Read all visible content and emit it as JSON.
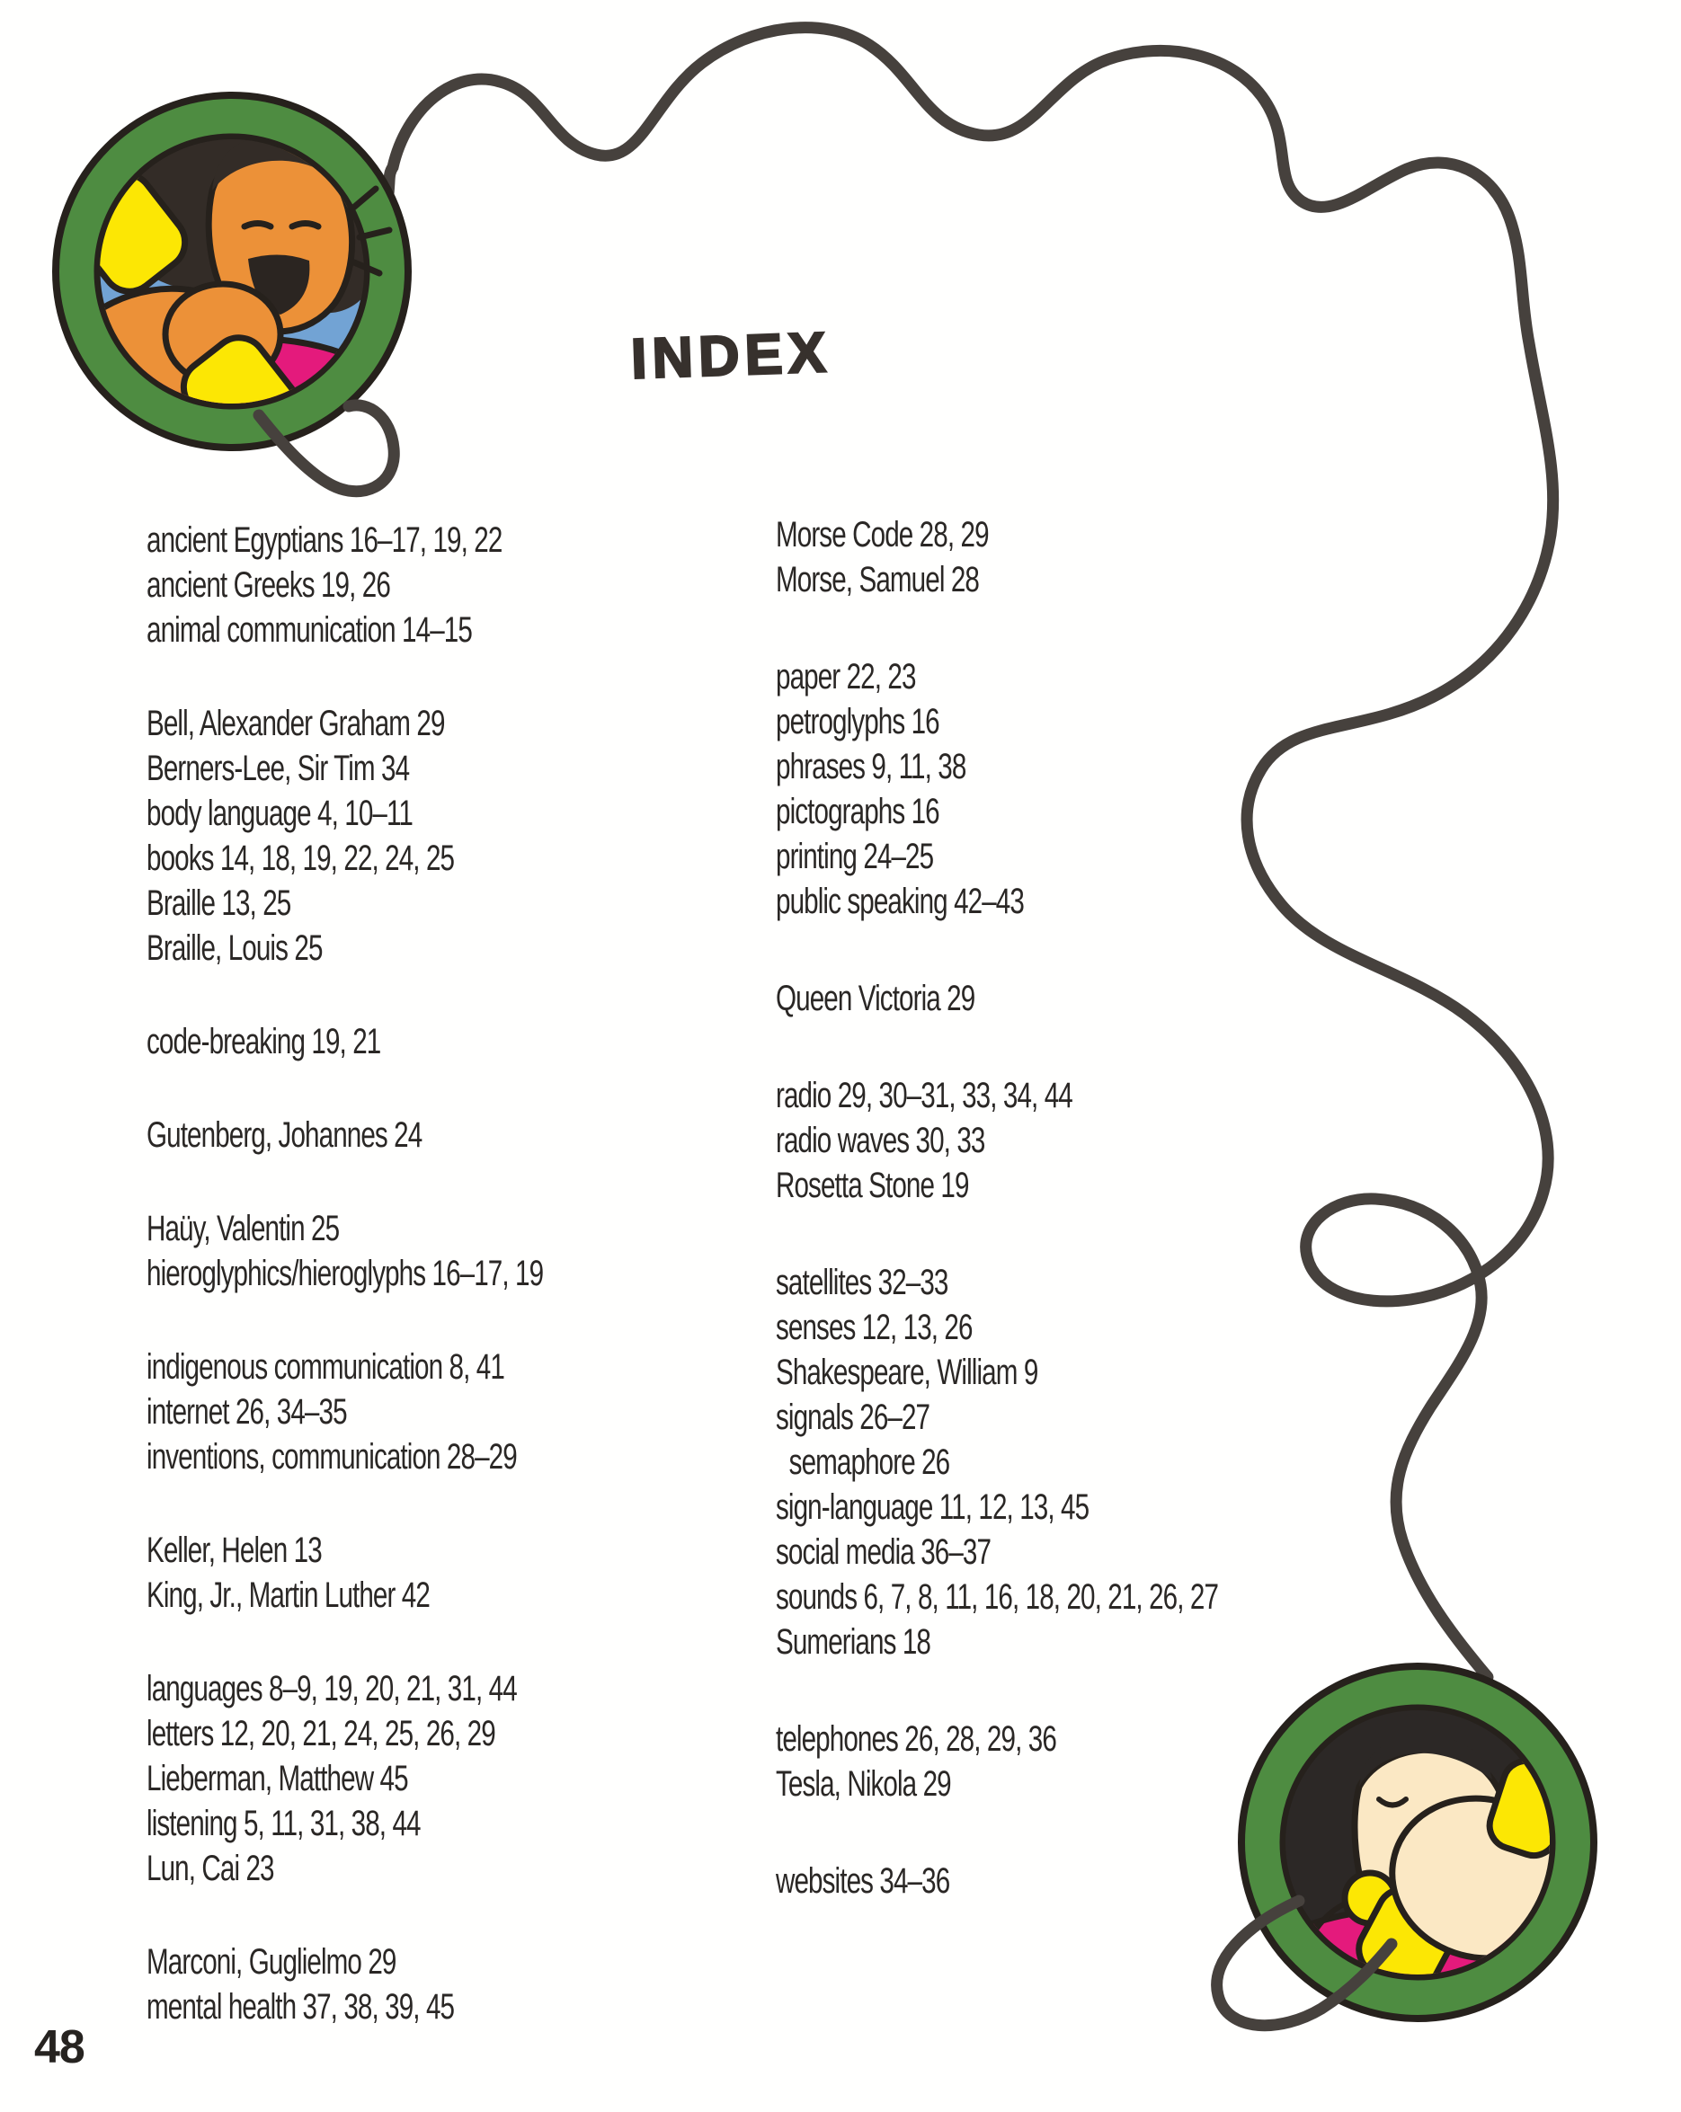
{
  "page": {
    "title": "INDEX",
    "page_number": "48"
  },
  "index": {
    "left_column": [
      "ancient Egyptians 16–17, 19, 22",
      "ancient Greeks 19, 26",
      "animal communication 14–15",
      "",
      "Bell, Alexander Graham 29",
      "Berners-Lee, Sir Tim 34",
      "body language 4, 10–11",
      "books 14, 18, 19, 22, 24, 25",
      "Braille 13, 25",
      "Braille, Louis 25",
      "",
      "code-breaking 19, 21",
      "",
      "Gutenberg, Johannes 24",
      "",
      "Haüy, Valentin 25",
      "hieroglyphics/hieroglyphs 16–17, 19",
      "",
      "indigenous communication 8, 41",
      "internet 26, 34–35",
      "inventions, communication 28–29",
      "",
      "Keller, Helen 13",
      "King, Jr., Martin Luther 42",
      "",
      "languages 8–9, 19, 20, 21, 31, 44",
      "letters 12, 20, 21, 24, 25, 26, 29",
      "Lieberman, Matthew 45",
      "listening 5, 11, 31, 38, 44",
      "Lun, Cai 23",
      "",
      "Marconi, Guglielmo 29",
      "mental health 37, 38, 39, 45"
    ],
    "right_column": [
      "Morse Code 28, 29",
      "Morse, Samuel 28",
      "",
      "paper 22, 23",
      "petroglyphs 16",
      "phrases 9, 11, 38",
      "pictographs 16",
      "printing 24–25",
      "public speaking 42–43",
      "",
      "Queen Victoria 29",
      "",
      "radio 29, 30–31, 33, 34, 44",
      "radio waves 30, 33",
      "Rosetta Stone 19",
      "",
      "satellites 32–33",
      "senses 12, 13, 26",
      "Shakespeare, William 9",
      "signals 26–27",
      "  semaphore 26",
      "sign-language 11, 12, 13, 45",
      "social media 36–37",
      "sounds 6, 7, 8, 11, 16, 18, 20, 21, 26, 27",
      "Sumerians 18",
      "",
      "telephones 26, 28, 29, 36",
      "Tesla, Nikola 29",
      "",
      "websites 34–36"
    ]
  },
  "illustrations": {
    "top_left_badge": "boy-laughing-talking-on-telephone",
    "bottom_right_badge": "girl-listening-on-telephone",
    "connector": "wavy-telephone-cord",
    "colors": {
      "ring_green": "#4e8c41",
      "sky_blue": "#72a3d4",
      "shirt_magenta": "#e41a7c",
      "phone_yellow": "#fce704",
      "skin_orange": "#ec9138",
      "skin_cream": "#fbe8c4",
      "hair_dark": "#332c27",
      "cord_gray": "#46413d",
      "ink": "#2a2725"
    }
  }
}
